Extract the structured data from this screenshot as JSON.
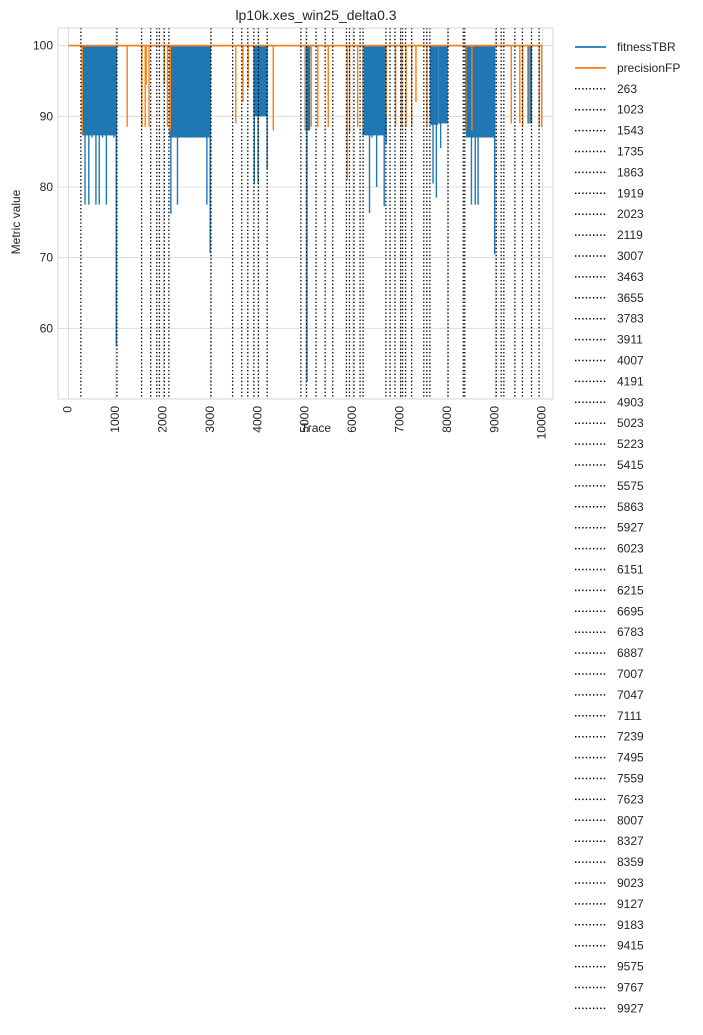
{
  "chart_data": {
    "type": "line",
    "title": "lp10k.xes_win25_delta0.3",
    "xlabel": "Trace",
    "ylabel": "Metric value",
    "xlim": [
      -220,
      10220
    ],
    "ylim": [
      50,
      102.5
    ],
    "xticks": [
      0,
      1000,
      2000,
      3000,
      4000,
      5000,
      6000,
      7000,
      8000,
      9000,
      10000
    ],
    "yticks": [
      60,
      70,
      80,
      90,
      100
    ],
    "grid": true,
    "legend_placement": "outside-right",
    "series": [
      {
        "name": "fitnessTBR",
        "color": "#1f77b4",
        "drift_segments": [
          {
            "x": [
              290,
              1000
            ],
            "low": 87.3,
            "high": 100,
            "dips": [
              [
                350,
                77.5
              ],
              [
                430,
                77.5
              ],
              [
                500,
                87
              ],
              [
                580,
                77.5
              ],
              [
                650,
                77.5
              ],
              [
                720,
                87
              ],
              [
                800,
                77.5
              ],
              [
                870,
                90.3
              ],
              [
                960,
                87
              ],
              [
                1010,
                57.5
              ]
            ]
          },
          {
            "x": [
              2130,
              3000
            ],
            "low": 87,
            "high": 100,
            "dips": [
              [
                2160,
                76.2
              ],
              [
                2300,
                77.5
              ],
              [
                2450,
                87
              ],
              [
                2520,
                87
              ],
              [
                2650,
                87
              ],
              [
                2920,
                77.5
              ],
              [
                2990,
                70.7
              ]
            ]
          },
          {
            "x": [
              3900,
              4190
            ],
            "low": 90,
            "high": 100,
            "dips": [
              [
                3920,
                80.5
              ],
              [
                4000,
                80.5
              ],
              [
                4040,
                90
              ],
              [
                4190,
                82.5
              ]
            ]
          },
          {
            "x": [
              4980,
              5100
            ],
            "low": 88,
            "high": 100,
            "dips": [
              [
                5030,
                52.5
              ],
              [
                5060,
                88
              ]
            ]
          },
          {
            "x": [
              6200,
              6700
            ],
            "low": 87.3,
            "high": 100,
            "dips": [
              [
                6230,
                87.3
              ],
              [
                6350,
                76.3
              ],
              [
                6400,
                87
              ],
              [
                6500,
                80
              ],
              [
                6660,
                77.3
              ],
              [
                6700,
                86
              ]
            ]
          },
          {
            "x": [
              7620,
              7800
            ],
            "low": 88.8,
            "high": 100,
            "dips": [
              [
                7690,
                80.5
              ],
              [
                7760,
                78.5
              ]
            ]
          },
          {
            "x": [
              7800,
              8000
            ],
            "low": 89,
            "high": 100,
            "dips": [
              [
                7850,
                85.5
              ],
              [
                7950,
                89
              ]
            ]
          },
          {
            "x": [
              8380,
              9000
            ],
            "low": 87,
            "high": 100,
            "dips": [
              [
                8420,
                87.7
              ],
              [
                8500,
                77.5
              ],
              [
                8580,
                77.5
              ],
              [
                8640,
                77.5
              ],
              [
                8700,
                87
              ],
              [
                8900,
                87
              ],
              [
                8990,
                70.5
              ]
            ]
          },
          {
            "x": [
              9680,
              9780
            ],
            "low": 89,
            "high": 100,
            "dips": [
              [
                9700,
                89
              ]
            ]
          }
        ]
      },
      {
        "name": "precisionFP",
        "color": "#ff7f0e",
        "baseline": 100,
        "spikes": [
          [
            290,
            87.5
          ],
          [
            1240,
            88.5
          ],
          [
            1550,
            88.5
          ],
          [
            1620,
            88.5
          ],
          [
            1640,
            94.5
          ],
          [
            1700,
            88.5
          ],
          [
            2020,
            94.5
          ],
          [
            2090,
            88.5
          ],
          [
            2150,
            88
          ],
          [
            3530,
            89
          ],
          [
            3680,
            92
          ],
          [
            3790,
            94
          ],
          [
            4320,
            88
          ],
          [
            5000,
            88
          ],
          [
            5120,
            88.5
          ],
          [
            5260,
            88.5
          ],
          [
            5480,
            88.5
          ],
          [
            5880,
            81
          ],
          [
            5930,
            87.7
          ],
          [
            6100,
            88.5
          ],
          [
            6220,
            88
          ],
          [
            6700,
            90
          ],
          [
            6900,
            88.5
          ],
          [
            7030,
            88.5
          ],
          [
            7120,
            88.5
          ],
          [
            7240,
            88.5
          ],
          [
            7330,
            92
          ],
          [
            7560,
            88.5
          ],
          [
            8380,
            88
          ],
          [
            8510,
            88
          ],
          [
            9340,
            89
          ],
          [
            9520,
            89
          ],
          [
            9580,
            88.5
          ],
          [
            9720,
            89
          ],
          [
            9930,
            88.5
          ],
          [
            9980,
            88.5
          ]
        ]
      }
    ],
    "drift_lines": [
      263,
      1023,
      1543,
      1735,
      1863,
      1919,
      2023,
      2119,
      3007,
      3463,
      3655,
      3783,
      3911,
      4007,
      4191,
      4903,
      5023,
      5223,
      5415,
      5575,
      5863,
      5927,
      6023,
      6151,
      6215,
      6695,
      6783,
      6887,
      7007,
      7047,
      7111,
      7239,
      7495,
      7559,
      7623,
      8007,
      8327,
      8359,
      9023,
      9127,
      9183,
      9415,
      9575,
      9767,
      9927
    ],
    "legend_entries": [
      "fitnessTBR",
      "precisionFP",
      "263",
      "1023",
      "1543",
      "1735",
      "1863",
      "1919",
      "2023",
      "2119",
      "3007",
      "3463",
      "3655",
      "3783",
      "3911",
      "4007",
      "4191",
      "4903",
      "5023",
      "5223",
      "5415",
      "5575",
      "5863",
      "5927",
      "6023",
      "6151",
      "6215",
      "6695",
      "6783",
      "6887",
      "7007",
      "7047",
      "7111",
      "7239",
      "7495",
      "7559",
      "7623",
      "8007",
      "8327",
      "8359",
      "9023",
      "9127",
      "9183",
      "9415",
      "9575",
      "9767",
      "9927"
    ]
  }
}
